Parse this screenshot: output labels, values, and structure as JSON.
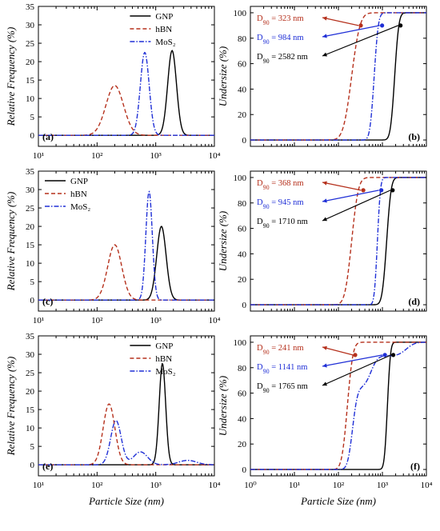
{
  "figure": {
    "shared_x_label": "Particle Size (nm)",
    "left_x_label": "Particle Size (nm)"
  },
  "colors": {
    "GNP": "#000000",
    "hBN": "#b5301c",
    "MoS2": "#1f2fd6",
    "axis": "#000000"
  },
  "chart_data": [
    {
      "id": "a",
      "type": "line",
      "panel_label": "(a)",
      "ylabel": "Relative Frequency (%)",
      "xlabel": "",
      "xscale": "log",
      "xlim": [
        10,
        10000
      ],
      "ylim": [
        -3,
        35
      ],
      "xticks": [
        10,
        100,
        1000,
        10000
      ],
      "xtick_labels": [
        "10¹",
        "10²",
        "10³",
        "10⁴"
      ],
      "yticks": [
        0,
        5,
        10,
        15,
        20,
        25,
        30,
        35
      ],
      "grid": false,
      "legend": "top-center",
      "series": [
        {
          "name": "GNP",
          "style": "solid",
          "color": "#000000",
          "peaks": [
            {
              "center": 1900,
              "height": 23,
              "sigma_log": 0.075
            }
          ]
        },
        {
          "name": "hBN",
          "style": "dash",
          "color": "#b5301c",
          "peaks": [
            {
              "center": 200,
              "height": 13.5,
              "sigma_log": 0.15
            }
          ]
        },
        {
          "name": "MoS₂",
          "style": "dashdot",
          "color": "#1f2fd6",
          "peaks": [
            {
              "center": 650,
              "height": 22.5,
              "sigma_log": 0.075
            }
          ]
        }
      ]
    },
    {
      "id": "b",
      "type": "line",
      "panel_label": "(b)",
      "ylabel": "Undersize (%)",
      "xlabel": "",
      "xscale": "log",
      "xlim": [
        1,
        10000
      ],
      "ylim": [
        -5,
        105
      ],
      "yticks": [
        0,
        20,
        40,
        60,
        80,
        100
      ],
      "grid": false,
      "series": [
        {
          "name": "GNP",
          "style": "solid",
          "color": "#000000",
          "center": 1900,
          "sigma_log": 0.075,
          "d90": 2582
        },
        {
          "name": "hBN",
          "style": "dash",
          "color": "#b5301c",
          "center": 200,
          "sigma_log": 0.15,
          "d90": 323
        },
        {
          "name": "MoS₂",
          "style": "dashdot",
          "color": "#1f2fd6",
          "center": 650,
          "sigma_log": 0.075,
          "d90": 984
        }
      ],
      "annotations": [
        {
          "series": "hBN",
          "prefix": "D",
          "sub": "90",
          "text": " = 323 nm",
          "color": "#b5301c",
          "row": 0
        },
        {
          "series": "MoS₂",
          "prefix": "D",
          "sub": "90",
          "text": " = 984 nm",
          "color": "#1f2fd6",
          "row": 1
        },
        {
          "series": "GNP",
          "prefix": "D",
          "sub": "90",
          "text": " = 2582 nm",
          "color": "#000000",
          "row": 2
        }
      ]
    },
    {
      "id": "c",
      "type": "line",
      "panel_label": "(c)",
      "ylabel": "Relative Frequency (%)",
      "xlabel": "",
      "xscale": "log",
      "xlim": [
        10,
        10000
      ],
      "ylim": [
        -3,
        35
      ],
      "xticks": [
        10,
        100,
        1000,
        10000
      ],
      "xtick_labels": [
        "10¹",
        "10²",
        "10³",
        "10⁴"
      ],
      "yticks": [
        0,
        5,
        10,
        15,
        20,
        25,
        30,
        35
      ],
      "grid": false,
      "legend": "top-left",
      "series": [
        {
          "name": "GNP",
          "style": "solid",
          "color": "#000000",
          "peaks": [
            {
              "center": 1250,
              "height": 20,
              "sigma_log": 0.08
            }
          ]
        },
        {
          "name": "hBN",
          "style": "dash",
          "color": "#b5301c",
          "peaks": [
            {
              "center": 200,
              "height": 15,
              "sigma_log": 0.12
            }
          ]
        },
        {
          "name": "MoS₂",
          "style": "dashdot",
          "color": "#1f2fd6",
          "peaks": [
            {
              "center": 770,
              "height": 29.5,
              "sigma_log": 0.055
            }
          ]
        }
      ]
    },
    {
      "id": "d",
      "type": "line",
      "panel_label": "(d)",
      "ylabel": "Undersize (%)",
      "xlabel": "",
      "xscale": "log",
      "xlim": [
        1,
        10000
      ],
      "ylim": [
        -5,
        105
      ],
      "yticks": [
        0,
        20,
        40,
        60,
        80,
        100
      ],
      "grid": false,
      "series": [
        {
          "name": "GNP",
          "style": "solid",
          "color": "#000000",
          "center": 1250,
          "sigma_log": 0.08,
          "d90": 1710
        },
        {
          "name": "hBN",
          "style": "dash",
          "color": "#b5301c",
          "center": 200,
          "sigma_log": 0.12,
          "d90": 368
        },
        {
          "name": "MoS₂",
          "style": "dashdot",
          "color": "#1f2fd6",
          "center": 770,
          "sigma_log": 0.055,
          "d90": 945
        }
      ],
      "annotations": [
        {
          "series": "hBN",
          "prefix": "D",
          "sub": "90",
          "text": " = 368 nm",
          "color": "#b5301c",
          "row": 0
        },
        {
          "series": "MoS₂",
          "prefix": "D",
          "sub": "90",
          "text": " = 945 nm",
          "color": "#1f2fd6",
          "row": 1
        },
        {
          "series": "GNP",
          "prefix": "D",
          "sub": "90",
          "text": " = 1710 nm",
          "color": "#000000",
          "row": 2
        }
      ]
    },
    {
      "id": "e",
      "type": "line",
      "panel_label": "(e)",
      "ylabel": "Relative Frequency (%)",
      "xlabel": "Particle Size (nm)",
      "xscale": "log",
      "xlim": [
        10,
        10000
      ],
      "ylim": [
        -3,
        35
      ],
      "xticks": [
        10,
        100,
        1000,
        10000
      ],
      "xtick_labels": [
        "10¹",
        "10²",
        "10³",
        "10⁴"
      ],
      "yticks": [
        0,
        5,
        10,
        15,
        20,
        25,
        30,
        35
      ],
      "grid": false,
      "legend": "top-center",
      "series": [
        {
          "name": "GNP",
          "style": "solid",
          "color": "#000000",
          "peaks": [
            {
              "center": 1300,
              "height": 27.5,
              "sigma_log": 0.055
            }
          ]
        },
        {
          "name": "hBN",
          "style": "dash",
          "color": "#b5301c",
          "peaks": [
            {
              "center": 160,
              "height": 16.5,
              "sigma_log": 0.1
            }
          ]
        },
        {
          "name": "MoS₂",
          "style": "dashdot",
          "color": "#1f2fd6",
          "peaks": [
            {
              "center": 210,
              "height": 12,
              "sigma_log": 0.09
            },
            {
              "center": 550,
              "height": 3.5,
              "sigma_log": 0.12
            },
            {
              "center": 3500,
              "height": 1.2,
              "sigma_log": 0.15
            }
          ]
        }
      ]
    },
    {
      "id": "f",
      "type": "line",
      "panel_label": "(f)",
      "ylabel": "Undersize (%)",
      "xlabel": "Particle Size (nm)",
      "xscale": "log",
      "xlim": [
        1,
        10000
      ],
      "xticks": [
        1,
        10,
        100,
        1000,
        10000
      ],
      "xtick_labels": [
        "10⁰",
        "10¹",
        "10²",
        "10³",
        "10⁴"
      ],
      "ylim": [
        -5,
        105
      ],
      "yticks": [
        0,
        20,
        40,
        60,
        80,
        100
      ],
      "grid": false,
      "series": [
        {
          "name": "GNP",
          "style": "solid",
          "color": "#000000",
          "center": 1300,
          "sigma_log": 0.055,
          "d90": 1765
        },
        {
          "name": "hBN",
          "style": "dash",
          "color": "#b5301c",
          "center": 160,
          "sigma_log": 0.1,
          "d90": 241
        },
        {
          "name": "MoS₂",
          "style": "dashdot",
          "color": "#1f2fd6",
          "multi": true,
          "d90": 1141
        }
      ],
      "annotations": [
        {
          "series": "hBN",
          "prefix": "D",
          "sub": "90",
          "text": " = 241 nm",
          "color": "#b5301c",
          "row": 0
        },
        {
          "series": "MoS₂",
          "prefix": "D",
          "sub": "90",
          "text": " = 1141 nm",
          "color": "#1f2fd6",
          "row": 1
        },
        {
          "series": "GNP",
          "prefix": "D",
          "sub": "90",
          "text": " = 1765 nm",
          "color": "#000000",
          "row": 2
        }
      ]
    }
  ]
}
